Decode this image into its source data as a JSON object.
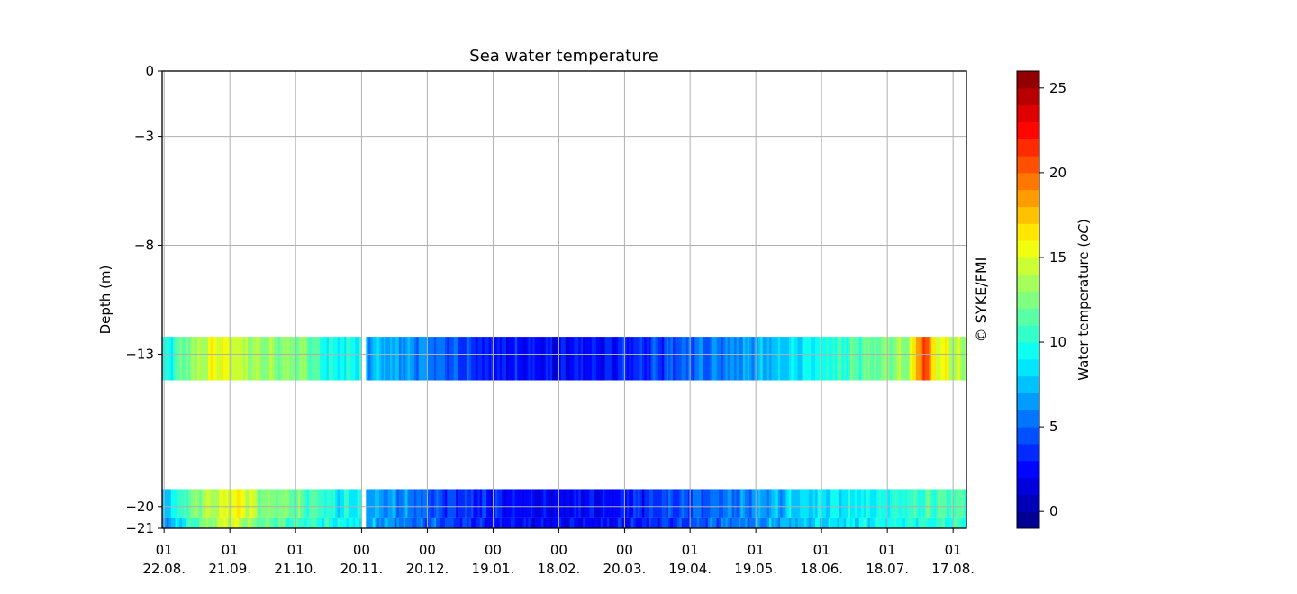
{
  "chart_data": {
    "type": "heatmap",
    "title": "Sea water temperature",
    "xlabel": "",
    "ylabel": "Depth (m)",
    "watermark": "© SYKE/FMI",
    "grid": true,
    "ylim": [
      -21,
      0
    ],
    "y_ticks": [
      0,
      -3,
      -8,
      -13,
      -20,
      -21
    ],
    "x_range_days": [
      0,
      367
    ],
    "x_ticks": [
      {
        "day": 0.9,
        "time": "01",
        "date": "22.08."
      },
      {
        "day": 30.9,
        "time": "01",
        "date": "21.09."
      },
      {
        "day": 60.9,
        "time": "01",
        "date": "21.10."
      },
      {
        "day": 91.0,
        "time": "00",
        "date": "20.11."
      },
      {
        "day": 121.0,
        "time": "00",
        "date": "20.12."
      },
      {
        "day": 151.0,
        "time": "00",
        "date": "19.01."
      },
      {
        "day": 181.0,
        "time": "00",
        "date": "18.02."
      },
      {
        "day": 211.0,
        "time": "00",
        "date": "20.03."
      },
      {
        "day": 240.9,
        "time": "01",
        "date": "19.04."
      },
      {
        "day": 270.9,
        "time": "01",
        "date": "19.05."
      },
      {
        "day": 300.9,
        "time": "01",
        "date": "18.06."
      },
      {
        "day": 330.9,
        "time": "01",
        "date": "18.07."
      },
      {
        "day": 360.9,
        "time": "01",
        "date": "17.08."
      }
    ],
    "series": [
      {
        "name": "depth 13 m",
        "y_top": -12.2,
        "y_bottom": -14.2,
        "keyframes": [
          [
            0,
            8.5
          ],
          [
            8,
            11.5
          ],
          [
            15,
            13
          ],
          [
            25,
            15.5
          ],
          [
            45,
            13
          ],
          [
            65,
            12.5
          ],
          [
            75,
            9.5
          ],
          [
            92,
            9.5
          ],
          [
            93,
            7.5
          ],
          [
            120,
            6
          ],
          [
            150,
            2.8
          ],
          [
            175,
            2.5
          ],
          [
            200,
            2.6
          ],
          [
            220,
            3.5
          ],
          [
            240,
            5
          ],
          [
            260,
            6
          ],
          [
            280,
            7.5
          ],
          [
            300,
            9.5
          ],
          [
            320,
            11.5
          ],
          [
            340,
            13
          ],
          [
            348,
            22
          ],
          [
            352,
            16
          ],
          [
            358,
            15
          ],
          [
            367,
            13
          ]
        ]
      },
      {
        "name": "depth 20 m",
        "y_top": -19.2,
        "y_bottom": -20.5,
        "keyframes": [
          [
            0,
            7
          ],
          [
            10,
            11
          ],
          [
            20,
            13.5
          ],
          [
            35,
            16
          ],
          [
            45,
            13
          ],
          [
            70,
            11
          ],
          [
            80,
            9
          ],
          [
            92,
            9.5
          ],
          [
            93,
            7
          ],
          [
            120,
            5
          ],
          [
            150,
            2.8
          ],
          [
            175,
            2.2
          ],
          [
            200,
            2.5
          ],
          [
            220,
            3.5
          ],
          [
            250,
            5
          ],
          [
            270,
            6
          ],
          [
            290,
            8
          ],
          [
            300,
            8.5
          ],
          [
            320,
            9
          ],
          [
            340,
            10
          ],
          [
            355,
            11
          ],
          [
            367,
            11
          ]
        ]
      },
      {
        "name": "depth 21 m",
        "y_top": -20.5,
        "y_bottom": -21,
        "keyframes": [
          [
            0,
            6
          ],
          [
            15,
            11
          ],
          [
            30,
            15
          ],
          [
            45,
            12
          ],
          [
            70,
            10
          ],
          [
            90,
            9
          ],
          [
            93,
            7
          ],
          [
            120,
            5
          ],
          [
            150,
            2.8
          ],
          [
            180,
            2.2
          ],
          [
            205,
            2.5
          ],
          [
            230,
            3.5
          ],
          [
            250,
            5
          ],
          [
            270,
            6
          ],
          [
            290,
            7.5
          ],
          [
            320,
            9
          ],
          [
            345,
            10
          ],
          [
            367,
            10.5
          ]
        ]
      }
    ],
    "colorbar": {
      "label": "Water temperature (°C)",
      "label_main": "Water temperature (",
      "label_unit": "oC",
      "label_close": ")",
      "min": -1,
      "max": 26,
      "step": 1,
      "ticks": [
        0,
        5,
        10,
        15,
        20,
        25
      ],
      "colormap": "jet"
    }
  }
}
